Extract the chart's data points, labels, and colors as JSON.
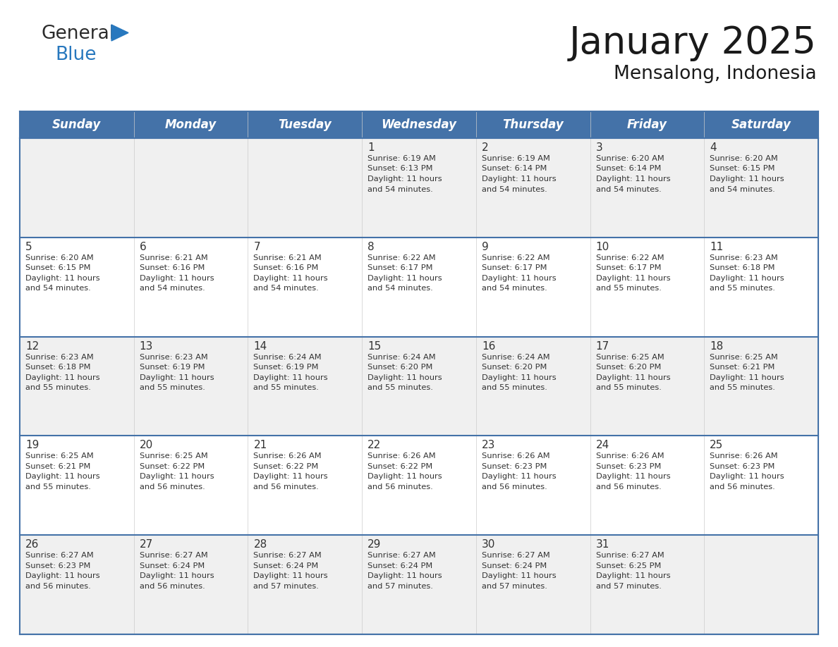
{
  "title": "January 2025",
  "subtitle": "Mensalong, Indonesia",
  "header_bg": "#4472A8",
  "header_text_color": "#FFFFFF",
  "cell_bg_light": "#F0F0F0",
  "cell_bg_white": "#FFFFFF",
  "cell_border_color": "#4472A8",
  "row_divider_color": "#4472A8",
  "day_number_color": "#333333",
  "content_text_color": "#333333",
  "days_of_week": [
    "Sunday",
    "Monday",
    "Tuesday",
    "Wednesday",
    "Thursday",
    "Friday",
    "Saturday"
  ],
  "calendar": [
    [
      null,
      null,
      null,
      {
        "day": 1,
        "sunrise": "6:19 AM",
        "sunset": "6:13 PM",
        "daylight": "11 hours\nand 54 minutes."
      },
      {
        "day": 2,
        "sunrise": "6:19 AM",
        "sunset": "6:14 PM",
        "daylight": "11 hours\nand 54 minutes."
      },
      {
        "day": 3,
        "sunrise": "6:20 AM",
        "sunset": "6:14 PM",
        "daylight": "11 hours\nand 54 minutes."
      },
      {
        "day": 4,
        "sunrise": "6:20 AM",
        "sunset": "6:15 PM",
        "daylight": "11 hours\nand 54 minutes."
      }
    ],
    [
      {
        "day": 5,
        "sunrise": "6:20 AM",
        "sunset": "6:15 PM",
        "daylight": "11 hours\nand 54 minutes."
      },
      {
        "day": 6,
        "sunrise": "6:21 AM",
        "sunset": "6:16 PM",
        "daylight": "11 hours\nand 54 minutes."
      },
      {
        "day": 7,
        "sunrise": "6:21 AM",
        "sunset": "6:16 PM",
        "daylight": "11 hours\nand 54 minutes."
      },
      {
        "day": 8,
        "sunrise": "6:22 AM",
        "sunset": "6:17 PM",
        "daylight": "11 hours\nand 54 minutes."
      },
      {
        "day": 9,
        "sunrise": "6:22 AM",
        "sunset": "6:17 PM",
        "daylight": "11 hours\nand 54 minutes."
      },
      {
        "day": 10,
        "sunrise": "6:22 AM",
        "sunset": "6:17 PM",
        "daylight": "11 hours\nand 55 minutes."
      },
      {
        "day": 11,
        "sunrise": "6:23 AM",
        "sunset": "6:18 PM",
        "daylight": "11 hours\nand 55 minutes."
      }
    ],
    [
      {
        "day": 12,
        "sunrise": "6:23 AM",
        "sunset": "6:18 PM",
        "daylight": "11 hours\nand 55 minutes."
      },
      {
        "day": 13,
        "sunrise": "6:23 AM",
        "sunset": "6:19 PM",
        "daylight": "11 hours\nand 55 minutes."
      },
      {
        "day": 14,
        "sunrise": "6:24 AM",
        "sunset": "6:19 PM",
        "daylight": "11 hours\nand 55 minutes."
      },
      {
        "day": 15,
        "sunrise": "6:24 AM",
        "sunset": "6:20 PM",
        "daylight": "11 hours\nand 55 minutes."
      },
      {
        "day": 16,
        "sunrise": "6:24 AM",
        "sunset": "6:20 PM",
        "daylight": "11 hours\nand 55 minutes."
      },
      {
        "day": 17,
        "sunrise": "6:25 AM",
        "sunset": "6:20 PM",
        "daylight": "11 hours\nand 55 minutes."
      },
      {
        "day": 18,
        "sunrise": "6:25 AM",
        "sunset": "6:21 PM",
        "daylight": "11 hours\nand 55 minutes."
      }
    ],
    [
      {
        "day": 19,
        "sunrise": "6:25 AM",
        "sunset": "6:21 PM",
        "daylight": "11 hours\nand 55 minutes."
      },
      {
        "day": 20,
        "sunrise": "6:25 AM",
        "sunset": "6:22 PM",
        "daylight": "11 hours\nand 56 minutes."
      },
      {
        "day": 21,
        "sunrise": "6:26 AM",
        "sunset": "6:22 PM",
        "daylight": "11 hours\nand 56 minutes."
      },
      {
        "day": 22,
        "sunrise": "6:26 AM",
        "sunset": "6:22 PM",
        "daylight": "11 hours\nand 56 minutes."
      },
      {
        "day": 23,
        "sunrise": "6:26 AM",
        "sunset": "6:23 PM",
        "daylight": "11 hours\nand 56 minutes."
      },
      {
        "day": 24,
        "sunrise": "6:26 AM",
        "sunset": "6:23 PM",
        "daylight": "11 hours\nand 56 minutes."
      },
      {
        "day": 25,
        "sunrise": "6:26 AM",
        "sunset": "6:23 PM",
        "daylight": "11 hours\nand 56 minutes."
      }
    ],
    [
      {
        "day": 26,
        "sunrise": "6:27 AM",
        "sunset": "6:23 PM",
        "daylight": "11 hours\nand 56 minutes."
      },
      {
        "day": 27,
        "sunrise": "6:27 AM",
        "sunset": "6:24 PM",
        "daylight": "11 hours\nand 56 minutes."
      },
      {
        "day": 28,
        "sunrise": "6:27 AM",
        "sunset": "6:24 PM",
        "daylight": "11 hours\nand 57 minutes."
      },
      {
        "day": 29,
        "sunrise": "6:27 AM",
        "sunset": "6:24 PM",
        "daylight": "11 hours\nand 57 minutes."
      },
      {
        "day": 30,
        "sunrise": "6:27 AM",
        "sunset": "6:24 PM",
        "daylight": "11 hours\nand 57 minutes."
      },
      {
        "day": 31,
        "sunrise": "6:27 AM",
        "sunset": "6:25 PM",
        "daylight": "11 hours\nand 57 minutes."
      },
      null
    ]
  ],
  "logo_general_color": "#2B2B2B",
  "logo_blue_color": "#2878BE",
  "title_fontsize": 38,
  "subtitle_fontsize": 19,
  "header_fontsize": 12,
  "day_num_fontsize": 11,
  "cell_text_fontsize": 8.2
}
